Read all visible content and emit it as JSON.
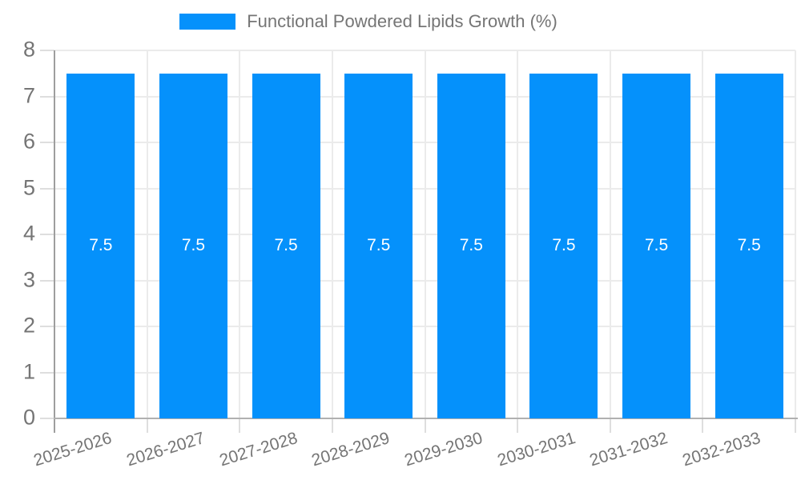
{
  "legend": {
    "label": "Functional Powdered Lipids Growth (%)",
    "swatch_color": "#0591fb"
  },
  "chart_data": {
    "type": "bar",
    "title": "Functional Powdered Lipids Growth (%)",
    "categories": [
      "2025-2026",
      "2026-2027",
      "2027-2028",
      "2028-2029",
      "2029-2030",
      "2030-2031",
      "2031-2032",
      "2032-2033"
    ],
    "values": [
      7.5,
      7.5,
      7.5,
      7.5,
      7.5,
      7.5,
      7.5,
      7.5
    ],
    "bar_labels": [
      "7.5",
      "7.5",
      "7.5",
      "7.5",
      "7.5",
      "7.5",
      "7.5",
      "7.5"
    ],
    "xlabel": "",
    "ylabel": "",
    "ylim": [
      0,
      8
    ],
    "yticks": [
      0,
      1,
      2,
      3,
      4,
      5,
      6,
      7,
      8
    ],
    "grid": true,
    "legend_position": "top",
    "bar_color": "#0591fb",
    "bar_value_color": "#ffffff",
    "axis_label_color": "#757575",
    "gridline_color": "#ebebeb",
    "axis_line_color": "#9e9e9e"
  }
}
